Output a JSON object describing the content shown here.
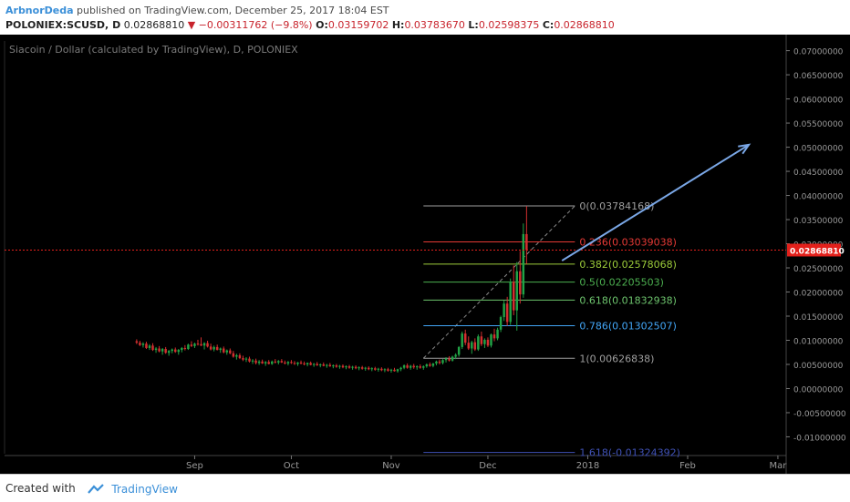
{
  "header": {
    "author": "ArbnorDeda",
    "published_text": "published on TradingView.com, December 25, 2017 18:04 EST",
    "symbol": "POLONIEX:SCUSD, D",
    "last": "0.02868810",
    "change": "▼ −0.00311762 (−9.8%)",
    "open_label": "O:",
    "open": "0.03159702",
    "high_label": "H:",
    "high": "0.03783670",
    "low_label": "L:",
    "low": "0.02598375",
    "close_label": "C:",
    "close": "0.02868810"
  },
  "footer": {
    "created_with": "Created with",
    "brand": "TradingView"
  },
  "colors": {
    "background": "#000000",
    "candle_up": "#21a346",
    "candle_down": "#d32f2f",
    "price_line": "#e3201b",
    "arrow": "#7aa7e6"
  },
  "chart_data": {
    "type": "candlestick",
    "title": "Siacoin / Dollar (calculated by TradingView), D, POLONIEX",
    "ylim": [
      -0.0135,
      0.072
    ],
    "y_ticks": [
      "0.07000000",
      "0.06500000",
      "0.06000000",
      "0.05500000",
      "0.05000000",
      "0.04500000",
      "0.04000000",
      "0.03500000",
      "0.03000000",
      "0.02500000",
      "0.02000000",
      "0.01500000",
      "0.01000000",
      "0.00500000",
      "0.00000000",
      "-0.00500000",
      "-0.01000000"
    ],
    "y_tick_values": [
      0.07,
      0.065,
      0.06,
      0.055,
      0.05,
      0.045,
      0.04,
      0.035,
      0.03,
      0.025,
      0.02,
      0.015,
      0.01,
      0.005,
      0.0,
      -0.005,
      -0.01
    ],
    "x_labels": [
      "Sep",
      "Oct",
      "Nov",
      "Dec",
      "2018",
      "Feb",
      "Mar"
    ],
    "x_label_dates": [
      "2017-09-01",
      "2017-10-01",
      "2017-11-01",
      "2017-12-01",
      "2018-01-01",
      "2018-02-01",
      "2018-03-01"
    ],
    "x_range": [
      "2017-07-04",
      "2018-03-03"
    ],
    "current_price": "0.02868810",
    "current_price_value": 0.0286881,
    "fib_levels": [
      {
        "label": "0(0.03784168)",
        "value": 0.03784168,
        "color": "#9e9e9e"
      },
      {
        "label": "0.236(0.03039038)",
        "value": 0.03039038,
        "color": "#e53935"
      },
      {
        "label": "0.382(0.02578068)",
        "value": 0.02578068,
        "color": "#9ccc3a"
      },
      {
        "label": "0.5(0.02205503)",
        "value": 0.02205503,
        "color": "#4caf50"
      },
      {
        "label": "0.618(0.01832938)",
        "value": 0.01832938,
        "color": "#6dc46d"
      },
      {
        "label": "0.786(0.01302507)",
        "value": 0.01302507,
        "color": "#42a5f5"
      },
      {
        "label": "1(0.00626838)",
        "value": 0.00626838,
        "color": "#9e9e9e"
      },
      {
        "label": "1.618(-0.01324392)",
        "value": -0.01324392,
        "color": "#3f51b5"
      }
    ],
    "fib_range": [
      "2017-11-11",
      "2017-12-28"
    ],
    "arrow": {
      "from": [
        "2017-12-24",
        0.0265
      ],
      "to": [
        "2018-02-20",
        0.0505
      ]
    },
    "candles": [
      {
        "o": 0.0098,
        "h": 0.0102,
        "l": 0.0092,
        "c": 0.0095
      },
      {
        "o": 0.0095,
        "h": 0.0099,
        "l": 0.0088,
        "c": 0.009
      },
      {
        "o": 0.009,
        "h": 0.0096,
        "l": 0.0085,
        "c": 0.0093
      },
      {
        "o": 0.0093,
        "h": 0.0097,
        "l": 0.0082,
        "c": 0.0084
      },
      {
        "o": 0.0084,
        "h": 0.0092,
        "l": 0.008,
        "c": 0.0089
      },
      {
        "o": 0.0089,
        "h": 0.0094,
        "l": 0.0078,
        "c": 0.008
      },
      {
        "o": 0.008,
        "h": 0.0086,
        "l": 0.0074,
        "c": 0.0083
      },
      {
        "o": 0.0083,
        "h": 0.0088,
        "l": 0.0075,
        "c": 0.0077
      },
      {
        "o": 0.0077,
        "h": 0.0084,
        "l": 0.007,
        "c": 0.0082
      },
      {
        "o": 0.0082,
        "h": 0.0086,
        "l": 0.0072,
        "c": 0.0074
      },
      {
        "o": 0.0074,
        "h": 0.008,
        "l": 0.0068,
        "c": 0.0078
      },
      {
        "o": 0.0078,
        "h": 0.0083,
        "l": 0.0073,
        "c": 0.0081
      },
      {
        "o": 0.0081,
        "h": 0.0085,
        "l": 0.0074,
        "c": 0.0076
      },
      {
        "o": 0.0076,
        "h": 0.0082,
        "l": 0.007,
        "c": 0.008
      },
      {
        "o": 0.008,
        "h": 0.0086,
        "l": 0.0075,
        "c": 0.0084
      },
      {
        "o": 0.0084,
        "h": 0.009,
        "l": 0.0079,
        "c": 0.0082
      },
      {
        "o": 0.0082,
        "h": 0.0093,
        "l": 0.008,
        "c": 0.0091
      },
      {
        "o": 0.0091,
        "h": 0.0098,
        "l": 0.0086,
        "c": 0.0088
      },
      {
        "o": 0.0088,
        "h": 0.0095,
        "l": 0.0084,
        "c": 0.0093
      },
      {
        "o": 0.0093,
        "h": 0.0101,
        "l": 0.0089,
        "c": 0.0092
      },
      {
        "o": 0.0092,
        "h": 0.0106,
        "l": 0.0088,
        "c": 0.0089
      },
      {
        "o": 0.0089,
        "h": 0.0096,
        "l": 0.0081,
        "c": 0.0094
      },
      {
        "o": 0.0094,
        "h": 0.0099,
        "l": 0.0085,
        "c": 0.0087
      },
      {
        "o": 0.0087,
        "h": 0.0093,
        "l": 0.0079,
        "c": 0.0081
      },
      {
        "o": 0.0081,
        "h": 0.0089,
        "l": 0.0077,
        "c": 0.0086
      },
      {
        "o": 0.0086,
        "h": 0.0091,
        "l": 0.0079,
        "c": 0.008
      },
      {
        "o": 0.008,
        "h": 0.0085,
        "l": 0.0074,
        "c": 0.0083
      },
      {
        "o": 0.0083,
        "h": 0.0087,
        "l": 0.0073,
        "c": 0.0075
      },
      {
        "o": 0.0075,
        "h": 0.0081,
        "l": 0.007,
        "c": 0.0079
      },
      {
        "o": 0.0079,
        "h": 0.0083,
        "l": 0.0071,
        "c": 0.0073
      },
      {
        "o": 0.0073,
        "h": 0.0078,
        "l": 0.0064,
        "c": 0.0066
      },
      {
        "o": 0.0066,
        "h": 0.0072,
        "l": 0.006,
        "c": 0.0069
      },
      {
        "o": 0.0069,
        "h": 0.0073,
        "l": 0.0061,
        "c": 0.0063
      },
      {
        "o": 0.0063,
        "h": 0.0068,
        "l": 0.0057,
        "c": 0.006
      },
      {
        "o": 0.006,
        "h": 0.0065,
        "l": 0.0055,
        "c": 0.0062
      },
      {
        "o": 0.0062,
        "h": 0.0066,
        "l": 0.0054,
        "c": 0.0056
      },
      {
        "o": 0.0056,
        "h": 0.0061,
        "l": 0.0051,
        "c": 0.0058
      },
      {
        "o": 0.0058,
        "h": 0.0062,
        "l": 0.005,
        "c": 0.0053
      },
      {
        "o": 0.0053,
        "h": 0.0059,
        "l": 0.0049,
        "c": 0.0056
      },
      {
        "o": 0.0056,
        "h": 0.006,
        "l": 0.0051,
        "c": 0.0052
      },
      {
        "o": 0.0052,
        "h": 0.0057,
        "l": 0.0047,
        "c": 0.0055
      },
      {
        "o": 0.0055,
        "h": 0.0059,
        "l": 0.005,
        "c": 0.0051
      },
      {
        "o": 0.0051,
        "h": 0.0058,
        "l": 0.0049,
        "c": 0.0056
      },
      {
        "o": 0.0056,
        "h": 0.0061,
        "l": 0.0052,
        "c": 0.0054
      },
      {
        "o": 0.0054,
        "h": 0.0059,
        "l": 0.005,
        "c": 0.0057
      },
      {
        "o": 0.0057,
        "h": 0.0061,
        "l": 0.0053,
        "c": 0.0054
      },
      {
        "o": 0.0054,
        "h": 0.0058,
        "l": 0.005,
        "c": 0.0052
      },
      {
        "o": 0.0052,
        "h": 0.0057,
        "l": 0.0048,
        "c": 0.0055
      },
      {
        "o": 0.0055,
        "h": 0.0059,
        "l": 0.0051,
        "c": 0.0053
      },
      {
        "o": 0.0053,
        "h": 0.0057,
        "l": 0.0049,
        "c": 0.0051
      },
      {
        "o": 0.0051,
        "h": 0.0055,
        "l": 0.0047,
        "c": 0.0054
      },
      {
        "o": 0.0054,
        "h": 0.0058,
        "l": 0.005,
        "c": 0.0052
      },
      {
        "o": 0.0052,
        "h": 0.0056,
        "l": 0.0048,
        "c": 0.005
      },
      {
        "o": 0.005,
        "h": 0.0054,
        "l": 0.0046,
        "c": 0.0053
      },
      {
        "o": 0.0053,
        "h": 0.0056,
        "l": 0.0048,
        "c": 0.0049
      },
      {
        "o": 0.0049,
        "h": 0.0053,
        "l": 0.0045,
        "c": 0.0051
      },
      {
        "o": 0.0051,
        "h": 0.0055,
        "l": 0.0047,
        "c": 0.0048
      },
      {
        "o": 0.0048,
        "h": 0.0052,
        "l": 0.0044,
        "c": 0.005
      },
      {
        "o": 0.005,
        "h": 0.0054,
        "l": 0.0046,
        "c": 0.0047
      },
      {
        "o": 0.0047,
        "h": 0.0051,
        "l": 0.0043,
        "c": 0.0049
      },
      {
        "o": 0.0049,
        "h": 0.0053,
        "l": 0.0045,
        "c": 0.0046
      },
      {
        "o": 0.0046,
        "h": 0.005,
        "l": 0.0042,
        "c": 0.0048
      },
      {
        "o": 0.0048,
        "h": 0.0051,
        "l": 0.0043,
        "c": 0.0045
      },
      {
        "o": 0.0045,
        "h": 0.0049,
        "l": 0.0041,
        "c": 0.0047
      },
      {
        "o": 0.0047,
        "h": 0.005,
        "l": 0.0042,
        "c": 0.0044
      },
      {
        "o": 0.0044,
        "h": 0.0048,
        "l": 0.004,
        "c": 0.0046
      },
      {
        "o": 0.0046,
        "h": 0.0049,
        "l": 0.0041,
        "c": 0.0043
      },
      {
        "o": 0.0043,
        "h": 0.0047,
        "l": 0.0039,
        "c": 0.0045
      },
      {
        "o": 0.0045,
        "h": 0.0048,
        "l": 0.004,
        "c": 0.0042
      },
      {
        "o": 0.0042,
        "h": 0.0046,
        "l": 0.0038,
        "c": 0.0044
      },
      {
        "o": 0.0044,
        "h": 0.0047,
        "l": 0.0039,
        "c": 0.0041
      },
      {
        "o": 0.0041,
        "h": 0.0045,
        "l": 0.0037,
        "c": 0.0043
      },
      {
        "o": 0.0043,
        "h": 0.0046,
        "l": 0.0038,
        "c": 0.004
      },
      {
        "o": 0.004,
        "h": 0.0044,
        "l": 0.0036,
        "c": 0.0042
      },
      {
        "o": 0.0042,
        "h": 0.0045,
        "l": 0.0037,
        "c": 0.0039
      },
      {
        "o": 0.0039,
        "h": 0.0043,
        "l": 0.0035,
        "c": 0.0041
      },
      {
        "o": 0.0041,
        "h": 0.0044,
        "l": 0.0036,
        "c": 0.0038
      },
      {
        "o": 0.0038,
        "h": 0.0042,
        "l": 0.0034,
        "c": 0.004
      },
      {
        "o": 0.004,
        "h": 0.0043,
        "l": 0.0035,
        "c": 0.0037
      },
      {
        "o": 0.0037,
        "h": 0.0041,
        "l": 0.0033,
        "c": 0.0039
      },
      {
        "o": 0.0039,
        "h": 0.0043,
        "l": 0.0035,
        "c": 0.0036
      },
      {
        "o": 0.0036,
        "h": 0.0041,
        "l": 0.0033,
        "c": 0.004
      },
      {
        "o": 0.004,
        "h": 0.0045,
        "l": 0.0036,
        "c": 0.0043
      },
      {
        "o": 0.0043,
        "h": 0.005,
        "l": 0.004,
        "c": 0.0048
      },
      {
        "o": 0.0048,
        "h": 0.0052,
        "l": 0.0041,
        "c": 0.0043
      },
      {
        "o": 0.0043,
        "h": 0.0049,
        "l": 0.0039,
        "c": 0.0047
      },
      {
        "o": 0.0047,
        "h": 0.0051,
        "l": 0.0041,
        "c": 0.0044
      },
      {
        "o": 0.0044,
        "h": 0.0048,
        "l": 0.0039,
        "c": 0.0046
      },
      {
        "o": 0.0046,
        "h": 0.005,
        "l": 0.0041,
        "c": 0.0043
      },
      {
        "o": 0.0043,
        "h": 0.0048,
        "l": 0.0039,
        "c": 0.0046
      },
      {
        "o": 0.0046,
        "h": 0.0052,
        "l": 0.0043,
        "c": 0.005
      },
      {
        "o": 0.005,
        "h": 0.0054,
        "l": 0.0045,
        "c": 0.0047
      },
      {
        "o": 0.0047,
        "h": 0.0053,
        "l": 0.0044,
        "c": 0.0052
      },
      {
        "o": 0.0052,
        "h": 0.0058,
        "l": 0.0048,
        "c": 0.0056
      },
      {
        "o": 0.0056,
        "h": 0.006,
        "l": 0.005,
        "c": 0.0053
      },
      {
        "o": 0.0053,
        "h": 0.0061,
        "l": 0.005,
        "c": 0.0059
      },
      {
        "o": 0.0059,
        "h": 0.0065,
        "l": 0.0054,
        "c": 0.0062
      },
      {
        "o": 0.0062,
        "h": 0.0067,
        "l": 0.0056,
        "c": 0.0058
      },
      {
        "o": 0.0058,
        "h": 0.0068,
        "l": 0.0056,
        "c": 0.0066
      },
      {
        "o": 0.0066,
        "h": 0.0073,
        "l": 0.0061,
        "c": 0.007
      },
      {
        "o": 0.007,
        "h": 0.0088,
        "l": 0.0066,
        "c": 0.0086
      },
      {
        "o": 0.0086,
        "h": 0.0118,
        "l": 0.0082,
        "c": 0.0114
      },
      {
        "o": 0.0114,
        "h": 0.0122,
        "l": 0.009,
        "c": 0.0095
      },
      {
        "o": 0.0095,
        "h": 0.0108,
        "l": 0.008,
        "c": 0.0083
      },
      {
        "o": 0.0083,
        "h": 0.0099,
        "l": 0.0072,
        "c": 0.0096
      },
      {
        "o": 0.0096,
        "h": 0.0104,
        "l": 0.0078,
        "c": 0.0081
      },
      {
        "o": 0.0081,
        "h": 0.0112,
        "l": 0.0078,
        "c": 0.0108
      },
      {
        "o": 0.0108,
        "h": 0.0118,
        "l": 0.0088,
        "c": 0.0092
      },
      {
        "o": 0.0092,
        "h": 0.0104,
        "l": 0.0084,
        "c": 0.0101
      },
      {
        "o": 0.0101,
        "h": 0.0106,
        "l": 0.0086,
        "c": 0.0089
      },
      {
        "o": 0.0089,
        "h": 0.0114,
        "l": 0.0085,
        "c": 0.0112
      },
      {
        "o": 0.0112,
        "h": 0.0124,
        "l": 0.0098,
        "c": 0.0104
      },
      {
        "o": 0.0104,
        "h": 0.0126,
        "l": 0.01,
        "c": 0.0122
      },
      {
        "o": 0.0122,
        "h": 0.0151,
        "l": 0.0117,
        "c": 0.0148
      },
      {
        "o": 0.0148,
        "h": 0.0182,
        "l": 0.014,
        "c": 0.0176
      },
      {
        "o": 0.0176,
        "h": 0.019,
        "l": 0.013,
        "c": 0.0138
      },
      {
        "o": 0.0138,
        "h": 0.0228,
        "l": 0.0132,
        "c": 0.0221
      },
      {
        "o": 0.0221,
        "h": 0.0255,
        "l": 0.0152,
        "c": 0.0162
      },
      {
        "o": 0.0162,
        "h": 0.0262,
        "l": 0.012,
        "c": 0.0243
      },
      {
        "o": 0.0243,
        "h": 0.0285,
        "l": 0.0176,
        "c": 0.0195
      },
      {
        "o": 0.0195,
        "h": 0.0342,
        "l": 0.0188,
        "c": 0.032
      },
      {
        "o": 0.032,
        "h": 0.0378,
        "l": 0.0258,
        "c": 0.0287
      }
    ]
  }
}
